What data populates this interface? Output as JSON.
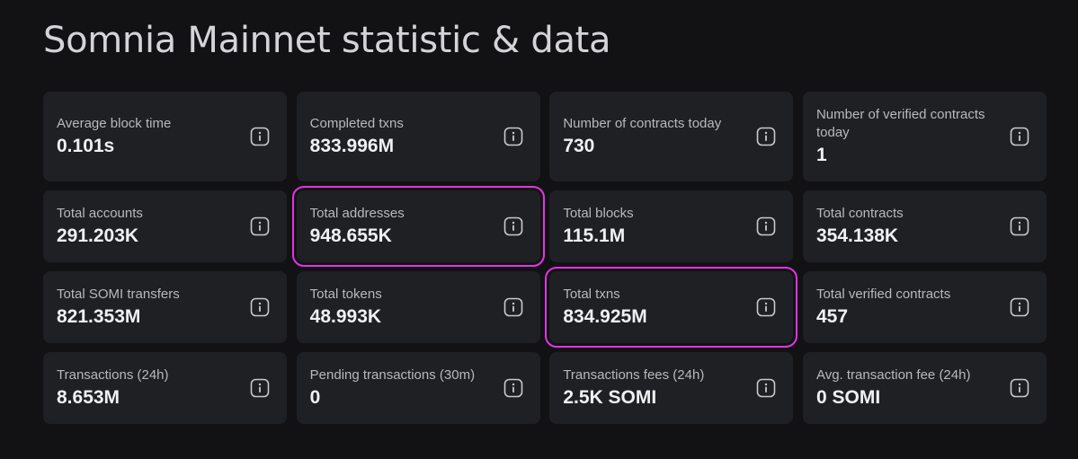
{
  "page": {
    "title": "Somnia Mainnet statistic & data"
  },
  "stats": [
    {
      "label": "Average block time",
      "value": "0.101s",
      "highlight": false
    },
    {
      "label": "Completed txns",
      "value": "833.996M",
      "highlight": false
    },
    {
      "label": "Number of contracts today",
      "value": "730",
      "highlight": false
    },
    {
      "label": "Number of verified contracts today",
      "value": "1",
      "highlight": false
    },
    {
      "label": "Total accounts",
      "value": "291.203K",
      "highlight": false
    },
    {
      "label": "Total addresses",
      "value": "948.655K",
      "highlight": true
    },
    {
      "label": "Total blocks",
      "value": "115.1M",
      "highlight": false
    },
    {
      "label": "Total contracts",
      "value": "354.138K",
      "highlight": false
    },
    {
      "label": "Total SOMI transfers",
      "value": "821.353M",
      "highlight": false
    },
    {
      "label": "Total tokens",
      "value": "48.993K",
      "highlight": false
    },
    {
      "label": "Total txns",
      "value": "834.925M",
      "highlight": true
    },
    {
      "label": "Total verified contracts",
      "value": "457",
      "highlight": false
    },
    {
      "label": "Transactions (24h)",
      "value": "8.653M",
      "highlight": false
    },
    {
      "label": "Pending transactions (30m)",
      "value": "0",
      "highlight": false
    },
    {
      "label": "Transactions fees (24h)",
      "value": "2.5K SOMI",
      "highlight": false
    },
    {
      "label": "Avg. transaction fee (24h)",
      "value": "0 SOMI",
      "highlight": false
    }
  ],
  "icons": {
    "info": "info-icon"
  },
  "colors": {
    "background": "#121214",
    "card": "#1f2023",
    "highlight_outline": "#e632e6"
  }
}
